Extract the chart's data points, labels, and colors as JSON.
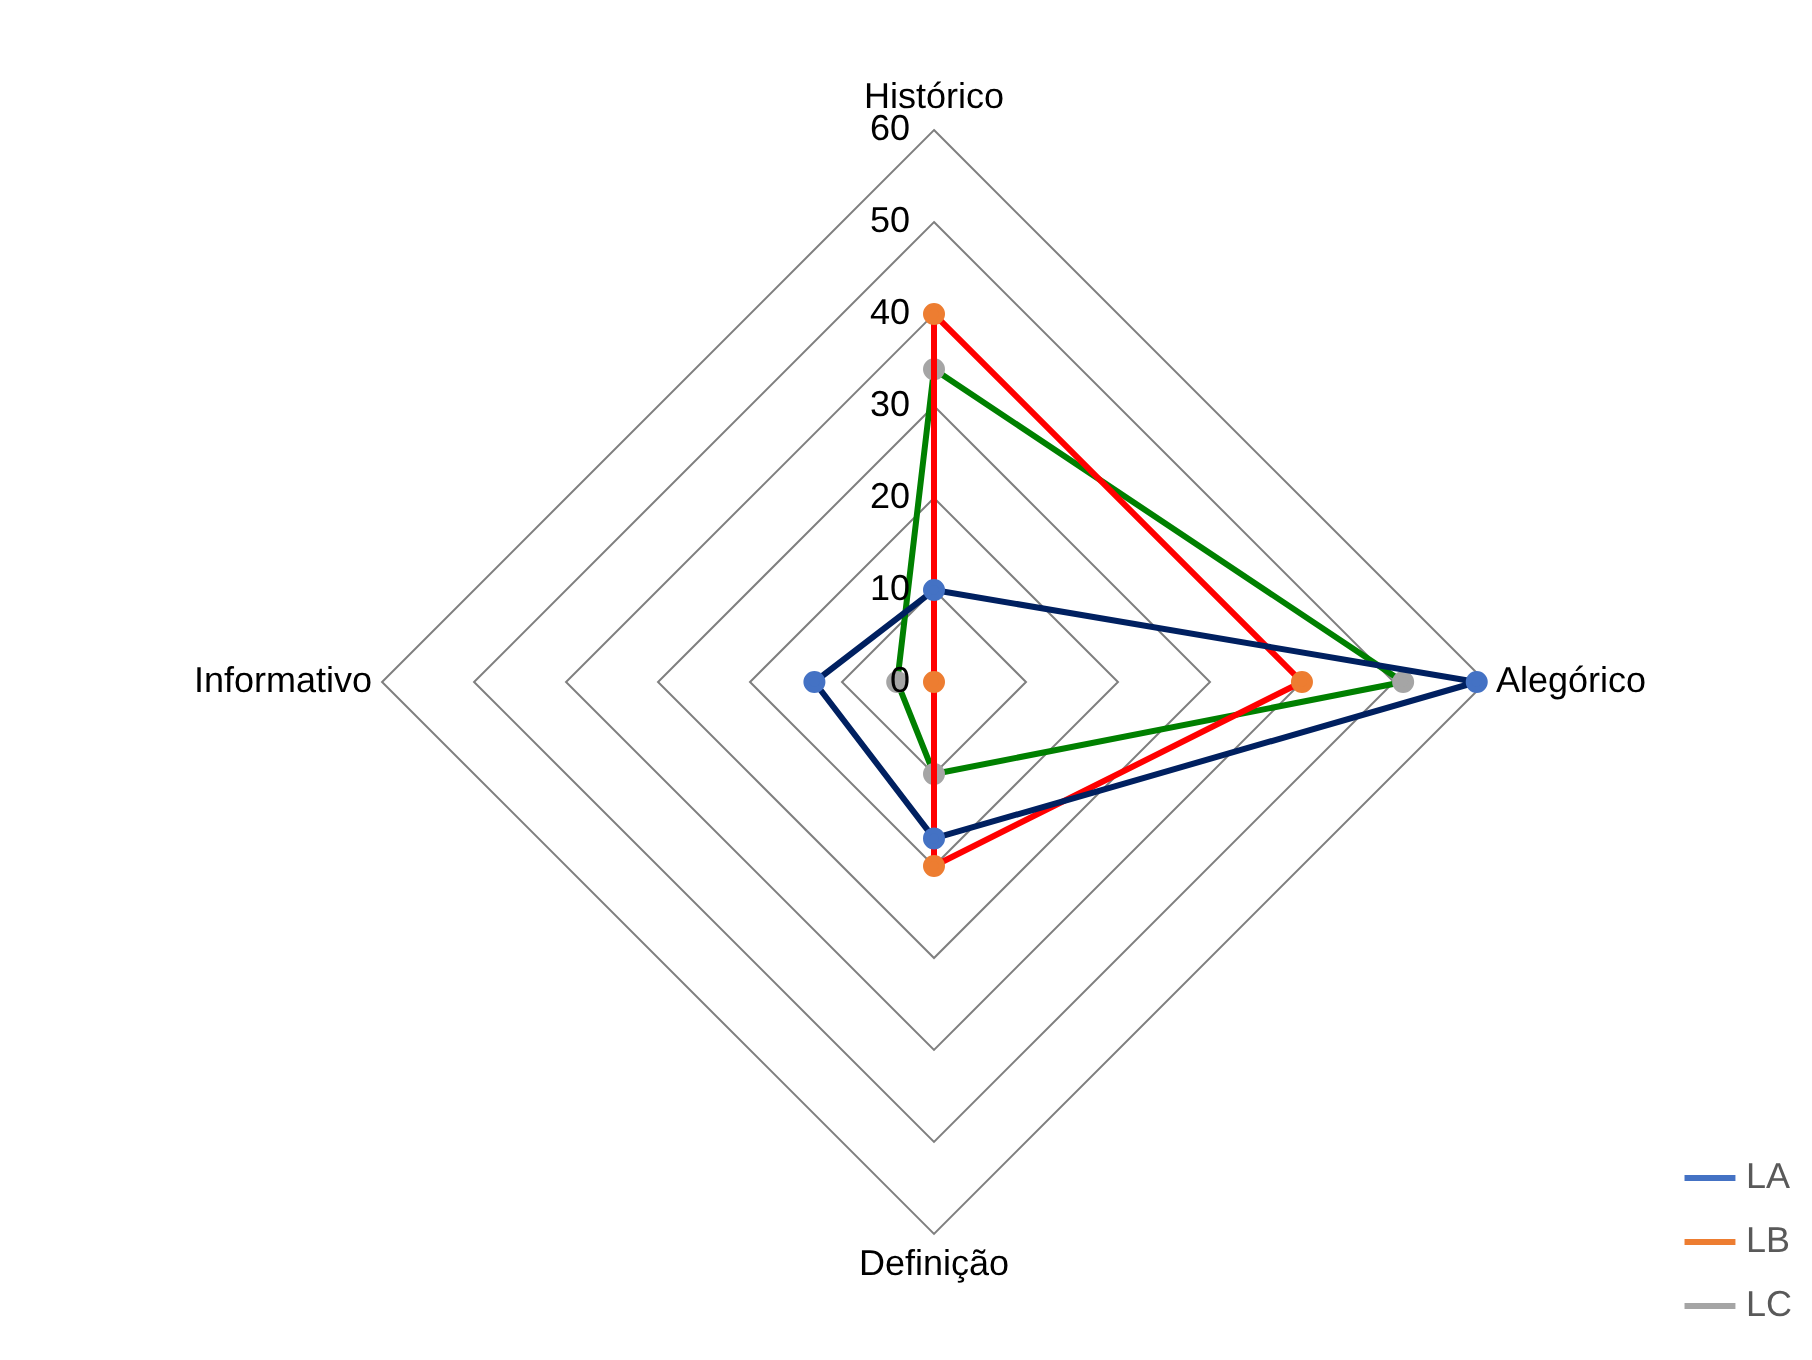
{
  "chart_data": {
    "type": "radar",
    "categories": [
      "Histórico",
      "Alegórico",
      "Definição",
      "Informativo"
    ],
    "series": [
      {
        "name": "LA",
        "color": "#002060",
        "colors": [
          "#4472c4",
          "#4472c4",
          "#4472c4",
          "#4472c4"
        ],
        "values": [
          10,
          59,
          17,
          13
        ]
      },
      {
        "name": "LB",
        "color": "#ff0000",
        "colors": [
          "#ed7d31",
          "#ed7d31",
          "#ed7d31",
          "#ed7d31"
        ],
        "values": [
          40,
          40,
          20,
          0
        ]
      },
      {
        "name": "LC",
        "color": "#008000",
        "colors": [
          "#a5a5a5",
          "#a5a5a5",
          "#a5a5a5",
          "#a5a5a5"
        ],
        "values": [
          34,
          51,
          10,
          4
        ]
      }
    ],
    "ylim": [
      0,
      60
    ],
    "yticks": [
      0,
      10,
      20,
      30,
      40,
      50,
      60
    ],
    "grid": true,
    "legend": "right",
    "marker": "circle",
    "line_style": "solid"
  }
}
